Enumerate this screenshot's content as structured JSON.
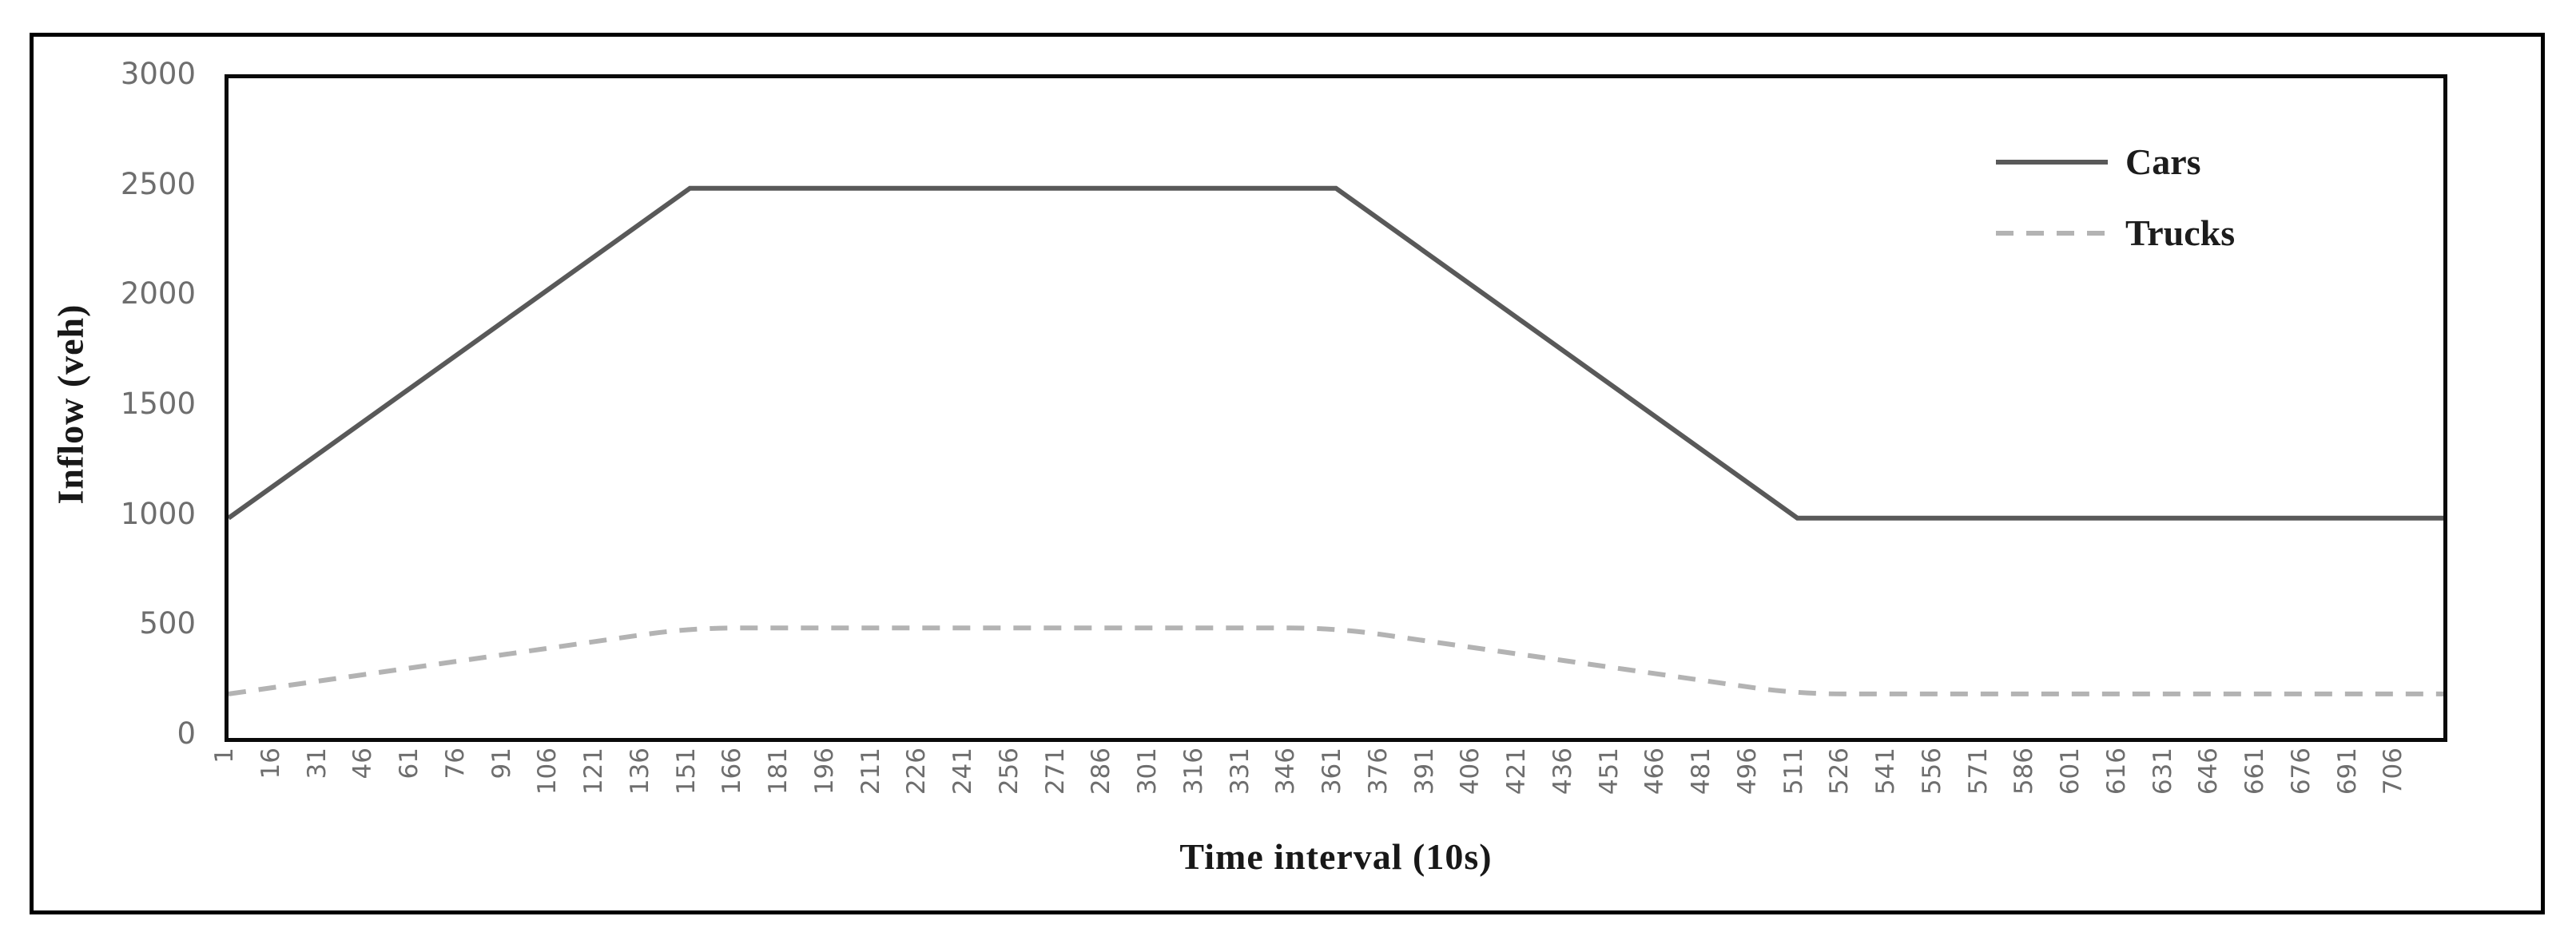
{
  "chart_data": {
    "type": "line",
    "title": "",
    "xlabel": "Time interval (10s)",
    "ylabel": "Inflow (veh)",
    "x_domain": [
      1,
      721
    ],
    "ylim": [
      0,
      3000
    ],
    "y_ticks": [
      0,
      500,
      1000,
      1500,
      2000,
      2500,
      3000
    ],
    "x_tick_labels": [
      1,
      16,
      31,
      46,
      61,
      76,
      91,
      106,
      121,
      136,
      151,
      166,
      181,
      196,
      211,
      226,
      241,
      256,
      271,
      286,
      301,
      316,
      331,
      346,
      361,
      376,
      391,
      406,
      421,
      436,
      451,
      466,
      481,
      496,
      511,
      526,
      541,
      556,
      571,
      586,
      601,
      616,
      631,
      646,
      661,
      676,
      691,
      706
    ],
    "grid": "off",
    "legend_position": "top-right-inside",
    "series": [
      {
        "name": "Cars",
        "style": "solid",
        "color": "#595959",
        "smooth": false,
        "points": [
          [
            1,
            1000
          ],
          [
            151,
            2500
          ],
          [
            361,
            2500
          ],
          [
            511,
            1000
          ],
          [
            721,
            1000
          ]
        ]
      },
      {
        "name": "Trucks",
        "style": "dashed",
        "color": "#b3b3b3",
        "smooth": true,
        "points": [
          [
            1,
            200
          ],
          [
            151,
            500
          ],
          [
            361,
            500
          ],
          [
            511,
            200
          ],
          [
            721,
            200
          ]
        ]
      }
    ],
    "colors": {
      "axis_border": "#0a0a0a",
      "tick_labels": "#6e6e6e",
      "titles": "#181818"
    }
  }
}
